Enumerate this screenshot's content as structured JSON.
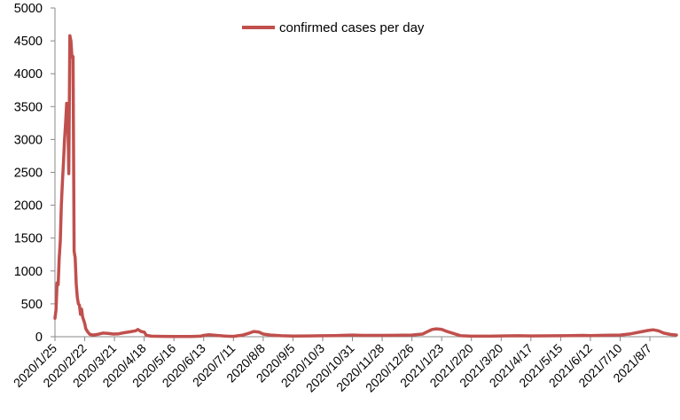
{
  "chart_data": {
    "type": "line",
    "legend": {
      "position": "top-center"
    },
    "grid": false,
    "ylim": [
      0,
      5000
    ],
    "y_ticks": [
      0,
      500,
      1000,
      1500,
      2000,
      2500,
      3000,
      3500,
      4000,
      4500,
      5000
    ],
    "x_range": [
      "2020-01-25",
      "2021-09-01"
    ],
    "x_tick_labels": [
      {
        "date": "2020-01-25",
        "label": "2020/1/25"
      },
      {
        "date": "2020-02-22",
        "label": "2020/2/22"
      },
      {
        "date": "2020-03-21",
        "label": "2020/3/21"
      },
      {
        "date": "2020-04-18",
        "label": "2020/4/18"
      },
      {
        "date": "2020-05-16",
        "label": "2020/5/16"
      },
      {
        "date": "2020-06-13",
        "label": "2020/6/13"
      },
      {
        "date": "2020-07-11",
        "label": "2020/7/11"
      },
      {
        "date": "2020-08-08",
        "label": "2020/8/8"
      },
      {
        "date": "2020-09-05",
        "label": "2020/9/5"
      },
      {
        "date": "2020-10-03",
        "label": "2020/10/3"
      },
      {
        "date": "2020-10-31",
        "label": "2020/10/31"
      },
      {
        "date": "2020-11-28",
        "label": "2020/11/28"
      },
      {
        "date": "2020-12-26",
        "label": "2020/12/26"
      },
      {
        "date": "2021-01-23",
        "label": "2021/1/23"
      },
      {
        "date": "2021-02-20",
        "label": "2021/2/20"
      },
      {
        "date": "2021-03-20",
        "label": "2021/3/20"
      },
      {
        "date": "2021-04-17",
        "label": "2021/4/17"
      },
      {
        "date": "2021-05-15",
        "label": "2021/5/15"
      },
      {
        "date": "2021-06-12",
        "label": "2021/6/12"
      },
      {
        "date": "2021-07-10",
        "label": "2021/7/10"
      },
      {
        "date": "2021-08-07",
        "label": "2021/8/7"
      }
    ],
    "series": [
      {
        "name": "confirmed cases per day",
        "color": "#c0504d",
        "points": [
          [
            "2020-01-25",
            280
          ],
          [
            "2020-01-26",
            410
          ],
          [
            "2020-01-27",
            820
          ],
          [
            "2020-01-28",
            790
          ],
          [
            "2020-01-29",
            1200
          ],
          [
            "2020-01-30",
            1450
          ],
          [
            "2020-01-31",
            2000
          ],
          [
            "2020-02-01",
            2350
          ],
          [
            "2020-02-02",
            2650
          ],
          [
            "2020-02-03",
            3000
          ],
          [
            "2020-02-04",
            3250
          ],
          [
            "2020-02-05",
            3550
          ],
          [
            "2020-02-06",
            3450
          ],
          [
            "2020-02-07",
            2480
          ],
          [
            "2020-02-08",
            4580
          ],
          [
            "2020-02-09",
            4500
          ],
          [
            "2020-02-10",
            4250
          ],
          [
            "2020-02-11",
            4260
          ],
          [
            "2020-02-12",
            1300
          ],
          [
            "2020-02-13",
            1200
          ],
          [
            "2020-02-14",
            800
          ],
          [
            "2020-02-15",
            600
          ],
          [
            "2020-02-16",
            500
          ],
          [
            "2020-02-17",
            480
          ],
          [
            "2020-02-18",
            340
          ],
          [
            "2020-02-19",
            420
          ],
          [
            "2020-02-20",
            300
          ],
          [
            "2020-02-21",
            250
          ],
          [
            "2020-02-22",
            200
          ],
          [
            "2020-02-23",
            120
          ],
          [
            "2020-02-25",
            70
          ],
          [
            "2020-02-27",
            35
          ],
          [
            "2020-03-01",
            25
          ],
          [
            "2020-03-05",
            35
          ],
          [
            "2020-03-10",
            55
          ],
          [
            "2020-03-15",
            50
          ],
          [
            "2020-03-20",
            40
          ],
          [
            "2020-03-25",
            45
          ],
          [
            "2020-03-30",
            60
          ],
          [
            "2020-04-05",
            75
          ],
          [
            "2020-04-10",
            90
          ],
          [
            "2020-04-12",
            110
          ],
          [
            "2020-04-15",
            80
          ],
          [
            "2020-04-18",
            70
          ],
          [
            "2020-04-20",
            20
          ],
          [
            "2020-04-25",
            8
          ],
          [
            "2020-05-05",
            5
          ],
          [
            "2020-05-16",
            4
          ],
          [
            "2020-06-01",
            4
          ],
          [
            "2020-06-10",
            8
          ],
          [
            "2020-06-13",
            20
          ],
          [
            "2020-06-18",
            30
          ],
          [
            "2020-06-25",
            20
          ],
          [
            "2020-07-05",
            8
          ],
          [
            "2020-07-11",
            5
          ],
          [
            "2020-07-20",
            25
          ],
          [
            "2020-07-26",
            55
          ],
          [
            "2020-07-30",
            80
          ],
          [
            "2020-08-04",
            70
          ],
          [
            "2020-08-08",
            40
          ],
          [
            "2020-08-15",
            25
          ],
          [
            "2020-08-25",
            15
          ],
          [
            "2020-09-05",
            10
          ],
          [
            "2020-09-20",
            12
          ],
          [
            "2020-10-03",
            15
          ],
          [
            "2020-10-15",
            18
          ],
          [
            "2020-10-31",
            25
          ],
          [
            "2020-11-10",
            20
          ],
          [
            "2020-11-28",
            20
          ],
          [
            "2020-12-10",
            22
          ],
          [
            "2020-12-26",
            25
          ],
          [
            "2021-01-05",
            40
          ],
          [
            "2021-01-10",
            80
          ],
          [
            "2021-01-14",
            110
          ],
          [
            "2021-01-18",
            120
          ],
          [
            "2021-01-23",
            110
          ],
          [
            "2021-01-28",
            80
          ],
          [
            "2021-02-03",
            50
          ],
          [
            "2021-02-10",
            15
          ],
          [
            "2021-02-20",
            8
          ],
          [
            "2021-03-10",
            8
          ],
          [
            "2021-03-20",
            12
          ],
          [
            "2021-04-05",
            15
          ],
          [
            "2021-04-17",
            12
          ],
          [
            "2021-05-01",
            14
          ],
          [
            "2021-05-15",
            15
          ],
          [
            "2021-05-25",
            18
          ],
          [
            "2021-06-05",
            20
          ],
          [
            "2021-06-12",
            18
          ],
          [
            "2021-06-25",
            22
          ],
          [
            "2021-07-10",
            25
          ],
          [
            "2021-07-20",
            45
          ],
          [
            "2021-07-30",
            75
          ],
          [
            "2021-08-05",
            95
          ],
          [
            "2021-08-10",
            105
          ],
          [
            "2021-08-15",
            90
          ],
          [
            "2021-08-20",
            55
          ],
          [
            "2021-08-26",
            35
          ],
          [
            "2021-09-01",
            25
          ]
        ]
      }
    ]
  }
}
